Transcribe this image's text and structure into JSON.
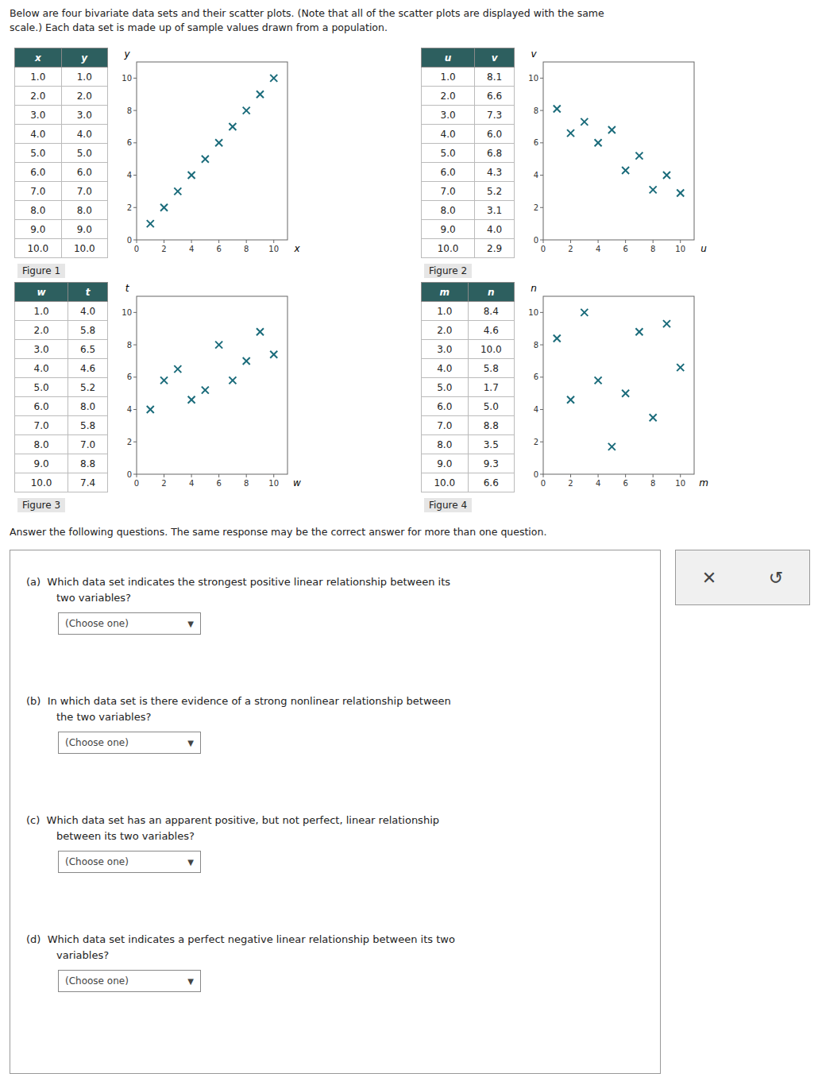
{
  "header": [
    "Below are four bivariate data sets and their scatter plots. (Note that all of the scatter plots are displayed with the same",
    "scale.) Each data set is made up of sample values drawn from a population."
  ],
  "chart_data": [
    {
      "type": "scatter",
      "title": "Figure 1",
      "xlabel": "x",
      "ylabel": "y",
      "x": [
        1.0,
        2.0,
        3.0,
        4.0,
        5.0,
        6.0,
        7.0,
        8.0,
        9.0,
        10.0
      ],
      "values": [
        1.0,
        2.0,
        3.0,
        4.0,
        5.0,
        6.0,
        7.0,
        8.0,
        9.0,
        10.0
      ],
      "xlim": [
        0,
        11
      ],
      "ylim": [
        0,
        11
      ],
      "xticks": [
        0,
        2,
        4,
        6,
        8,
        10
      ],
      "yticks": [
        0,
        2,
        4,
        6,
        8,
        10
      ],
      "grid": false,
      "color": "#1a6b7a",
      "marker": "x",
      "table": {
        "columns": [
          "x",
          "y"
        ],
        "rows": [
          [
            "1.0",
            "1.0"
          ],
          [
            "2.0",
            "2.0"
          ],
          [
            "3.0",
            "3.0"
          ],
          [
            "4.0",
            "4.0"
          ],
          [
            "5.0",
            "5.0"
          ],
          [
            "6.0",
            "6.0"
          ],
          [
            "7.0",
            "7.0"
          ],
          [
            "8.0",
            "8.0"
          ],
          [
            "9.0",
            "9.0"
          ],
          [
            "10.0",
            "10.0"
          ]
        ]
      }
    },
    {
      "type": "scatter",
      "title": "Figure 2",
      "xlabel": "u",
      "ylabel": "v",
      "x": [
        1.0,
        2.0,
        3.0,
        4.0,
        5.0,
        6.0,
        7.0,
        8.0,
        9.0,
        10.0
      ],
      "values": [
        8.1,
        6.6,
        7.3,
        6.0,
        6.8,
        4.3,
        5.2,
        3.1,
        4.0,
        2.9
      ],
      "xlim": [
        0,
        11
      ],
      "ylim": [
        0,
        11
      ],
      "xticks": [
        0,
        2,
        4,
        6,
        8,
        10
      ],
      "yticks": [
        0,
        2,
        4,
        6,
        8,
        10
      ],
      "grid": false,
      "color": "#1a6b7a",
      "marker": "x",
      "table": {
        "columns": [
          "u",
          "v"
        ],
        "rows": [
          [
            "1.0",
            "8.1"
          ],
          [
            "2.0",
            "6.6"
          ],
          [
            "3.0",
            "7.3"
          ],
          [
            "4.0",
            "6.0"
          ],
          [
            "5.0",
            "6.8"
          ],
          [
            "6.0",
            "4.3"
          ],
          [
            "7.0",
            "5.2"
          ],
          [
            "8.0",
            "3.1"
          ],
          [
            "9.0",
            "4.0"
          ],
          [
            "10.0",
            "2.9"
          ]
        ]
      }
    },
    {
      "type": "scatter",
      "title": "Figure 3",
      "xlabel": "w",
      "ylabel": "t",
      "x": [
        1.0,
        2.0,
        3.0,
        4.0,
        5.0,
        6.0,
        7.0,
        8.0,
        9.0,
        10.0
      ],
      "values": [
        4.0,
        5.8,
        6.5,
        4.6,
        5.2,
        8.0,
        5.8,
        7.0,
        8.8,
        7.4
      ],
      "xlim": [
        0,
        11
      ],
      "ylim": [
        0,
        11
      ],
      "xticks": [
        0,
        2,
        4,
        6,
        8,
        10
      ],
      "yticks": [
        0,
        2,
        4,
        6,
        8,
        10
      ],
      "grid": false,
      "color": "#1a6b7a",
      "marker": "x",
      "table": {
        "columns": [
          "w",
          "t"
        ],
        "rows": [
          [
            "1.0",
            "4.0"
          ],
          [
            "2.0",
            "5.8"
          ],
          [
            "3.0",
            "6.5"
          ],
          [
            "4.0",
            "4.6"
          ],
          [
            "5.0",
            "5.2"
          ],
          [
            "6.0",
            "8.0"
          ],
          [
            "7.0",
            "5.8"
          ],
          [
            "8.0",
            "7.0"
          ],
          [
            "9.0",
            "8.8"
          ],
          [
            "10.0",
            "7.4"
          ]
        ]
      }
    },
    {
      "type": "scatter",
      "title": "Figure 4",
      "xlabel": "m",
      "ylabel": "n",
      "x": [
        1.0,
        2.0,
        3.0,
        4.0,
        5.0,
        6.0,
        7.0,
        8.0,
        9.0,
        10.0
      ],
      "values": [
        8.4,
        4.6,
        10.0,
        5.8,
        1.7,
        5.0,
        8.8,
        3.5,
        9.3,
        6.6
      ],
      "xlim": [
        0,
        11
      ],
      "ylim": [
        0,
        11
      ],
      "xticks": [
        0,
        2,
        4,
        6,
        8,
        10
      ],
      "yticks": [
        0,
        2,
        4,
        6,
        8,
        10
      ],
      "grid": false,
      "color": "#1a6b7a",
      "marker": "x",
      "table": {
        "columns": [
          "m",
          "n"
        ],
        "rows": [
          [
            "1.0",
            "8.4"
          ],
          [
            "2.0",
            "4.6"
          ],
          [
            "3.0",
            "10.0"
          ],
          [
            "4.0",
            "5.8"
          ],
          [
            "5.0",
            "1.7"
          ],
          [
            "6.0",
            "5.0"
          ],
          [
            "7.0",
            "8.8"
          ],
          [
            "8.0",
            "3.5"
          ],
          [
            "9.0",
            "9.3"
          ],
          [
            "10.0",
            "6.6"
          ]
        ]
      }
    }
  ],
  "answer_text": "Answer the following questions. The same response may be the correct answer for more than one question.",
  "questions": [
    [
      "(a)  Which data set indicates the strongest positive linear relationship between its",
      "two variables?"
    ],
    [
      "(b)  In which data set is there evidence of a strong nonlinear relationship between",
      "the two variables?"
    ],
    [
      "(c)  Which data set has an apparent positive, but not perfect, linear relationship",
      "between its two variables?"
    ],
    [
      "(d)  Which data set indicates a perfect negative linear relationship between its two",
      "variables?"
    ]
  ],
  "dropdown_label": "(Choose one)",
  "dropdown_arrow": "▼",
  "buttons": [
    "✕",
    "↺"
  ]
}
